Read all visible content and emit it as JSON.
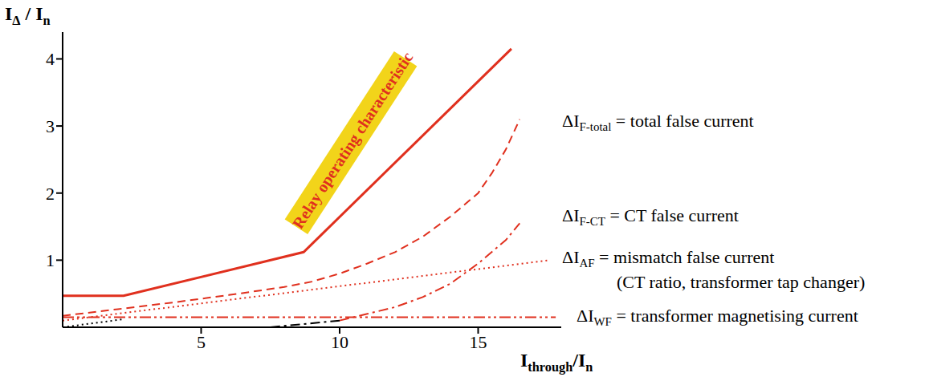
{
  "chart_data": {
    "type": "line",
    "y_label": [
      {
        "text": "I"
      },
      {
        "text": "Δ",
        "sub": true
      },
      {
        "text": " / I"
      },
      {
        "text": "n",
        "sub": true
      }
    ],
    "x_label": [
      {
        "text": "I"
      },
      {
        "text": "through",
        "sub": true
      },
      {
        "text": "/I"
      },
      {
        "text": "n",
        "sub": true
      }
    ],
    "annotation": "Relay operating characteristic",
    "xlim": [
      0,
      18
    ],
    "xticks": [
      5,
      10,
      15
    ],
    "ylim": [
      0,
      4.4
    ],
    "yticks": [
      1,
      2,
      3,
      4
    ],
    "grid": false,
    "series": [
      {
        "color": "#e0301e",
        "line_style": "solid",
        "x": [
          0,
          2.2,
          8.7,
          16.2
        ],
        "values": [
          0.47,
          0.47,
          1.12,
          4.15
        ]
      },
      {
        "color": "#e0301e",
        "line_style": "dashed",
        "x": [
          0,
          2,
          4,
          6,
          8,
          9,
          10,
          11,
          12,
          13,
          14,
          15,
          15.5,
          16,
          16.5
        ],
        "values": [
          0.17,
          0.27,
          0.37,
          0.48,
          0.6,
          0.68,
          0.8,
          0.95,
          1.12,
          1.35,
          1.65,
          2.0,
          2.3,
          2.65,
          3.1
        ],
        "label": [
          {
            "text": "ΔI"
          },
          {
            "text": "F-total",
            "sub": true
          },
          {
            "text": " = total false current"
          }
        ]
      },
      {
        "color": "#e0301e",
        "line_style": "dashdot",
        "x": [
          10,
          11,
          12,
          13,
          14,
          15,
          16,
          16.5
        ],
        "values": [
          0.1,
          0.2,
          0.3,
          0.45,
          0.65,
          0.95,
          1.3,
          1.55
        ],
        "label": [
          {
            "text": "ΔI"
          },
          {
            "text": "F-CT",
            "sub": true
          },
          {
            "text": " = CT false current"
          }
        ]
      },
      {
        "color": "#e0301e",
        "line_style": "dotted",
        "x": [
          0,
          17.6
        ],
        "values": [
          0.1,
          1.0
        ],
        "label": [
          {
            "text": "ΔI"
          },
          {
            "text": "AF",
            "sub": true
          },
          {
            "text": " = mismatch false current"
          }
        ],
        "note": "(CT ratio, transformer tap changer)"
      },
      {
        "color": "#e0301e",
        "line_style": "dashdotdot",
        "x": [
          0,
          17.8
        ],
        "values": [
          0.15,
          0.15
        ],
        "label": [
          {
            "text": "ΔI"
          },
          {
            "text": "WF",
            "sub": true
          },
          {
            "text": " = transformer magnetising current"
          }
        ]
      },
      {
        "color": "#000000",
        "line_style": "dotted",
        "x": [
          0,
          2.2
        ],
        "values": [
          0,
          0.12
        ]
      },
      {
        "color": "#000000",
        "line_style": "dashdot",
        "x": [
          7.5,
          10
        ],
        "values": [
          0,
          0.1
        ]
      }
    ]
  }
}
